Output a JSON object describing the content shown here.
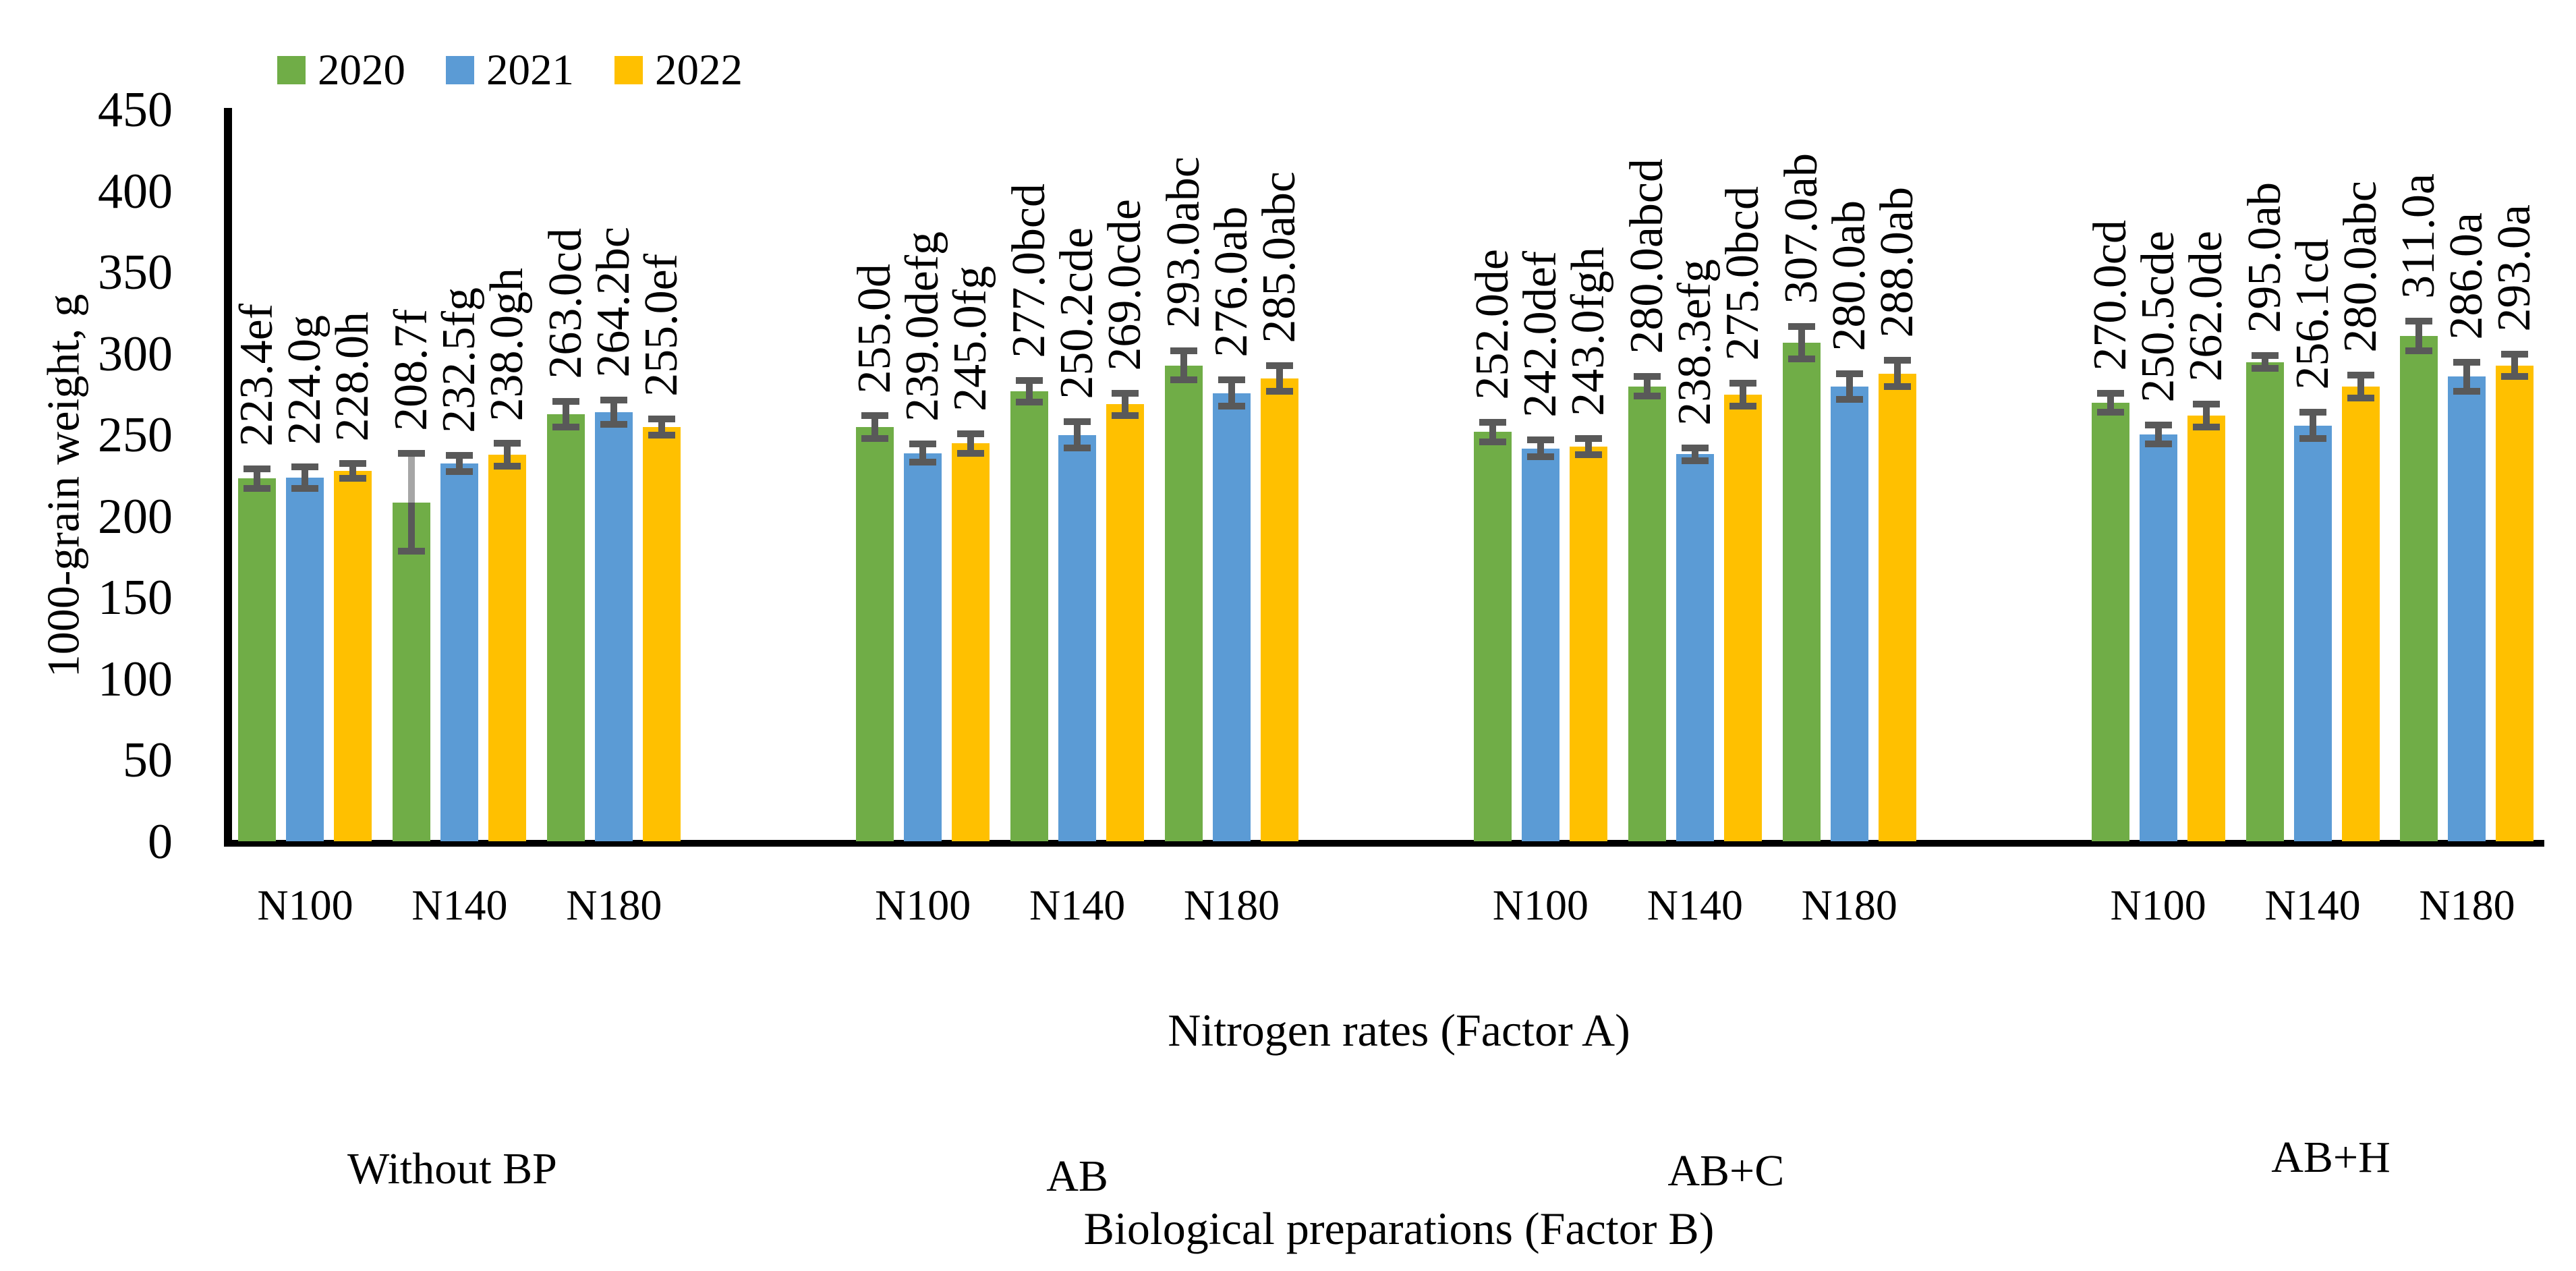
{
  "figure": {
    "background": "#FFFFFF",
    "axis_color": "#000000",
    "text_color": "#000000"
  },
  "chart_data": {
    "type": "bar",
    "title": "",
    "ylabel": "1000-grain weight, g",
    "xlabel": "Nitrogen rates (Factor A)",
    "xlabel2": "Biological preparations (Factor B)",
    "ylim": [
      0,
      450
    ],
    "ytick_interval": 50,
    "yticks": [
      450,
      400,
      350,
      300,
      250,
      200,
      150,
      100,
      50,
      0
    ],
    "grid": false,
    "legend": {
      "position": "top",
      "entries": [
        {
          "name": "2020",
          "color": "#70AD47"
        },
        {
          "name": "2021",
          "color": "#5B9BD5"
        },
        {
          "name": "2022",
          "color": "#FFC000"
        }
      ]
    },
    "error_bar_color": "#595959",
    "error_bar_light_color": "#A6A6A6",
    "categories_per_group": [
      "N100",
      "N140",
      "N180"
    ],
    "groups": [
      {
        "label": "Without BP",
        "categories": [
          {
            "label": "N100",
            "bars": [
              {
                "series": "2020",
                "value": 223.4,
                "data_label": "223.4ef",
                "error": 6
              },
              {
                "series": "2021",
                "value": 224.0,
                "data_label": "224.0g",
                "error": 6.5
              },
              {
                "series": "2022",
                "value": 228.0,
                "data_label": "228.0h",
                "error": 4.5
              }
            ]
          },
          {
            "label": "N140",
            "bars": [
              {
                "series": "2020",
                "value": 208.7,
                "data_label": "208.7f",
                "error": 30,
                "light_stem": true
              },
              {
                "series": "2021",
                "value": 232.5,
                "data_label": "232.5fg",
                "error": 5
              },
              {
                "series": "2022",
                "value": 238.0,
                "data_label": "238.0gh",
                "error": 7
              }
            ]
          },
          {
            "label": "N180",
            "bars": [
              {
                "series": "2020",
                "value": 263.0,
                "data_label": "263.0cd",
                "error": 8
              },
              {
                "series": "2021",
                "value": 264.2,
                "data_label": "264.2bc",
                "error": 7.5
              },
              {
                "series": "2022",
                "value": 255.0,
                "data_label": "255.0ef",
                "error": 5
              }
            ]
          }
        ]
      },
      {
        "label": "AB",
        "categories": [
          {
            "label": "N100",
            "bars": [
              {
                "series": "2020",
                "value": 255.0,
                "data_label": "255.0d",
                "error": 7
              },
              {
                "series": "2021",
                "value": 239.0,
                "data_label": "239.0defg",
                "error": 5.5
              },
              {
                "series": "2022",
                "value": 245.0,
                "data_label": "245.0fg",
                "error": 6
              }
            ]
          },
          {
            "label": "N140",
            "bars": [
              {
                "series": "2020",
                "value": 277.0,
                "data_label": "277.0bcd",
                "error": 6.5
              },
              {
                "series": "2021",
                "value": 250.2,
                "data_label": "250.2cde",
                "error": 8
              },
              {
                "series": "2022",
                "value": 269.0,
                "data_label": "269.0cde",
                "error": 7
              }
            ]
          },
          {
            "label": "N180",
            "bars": [
              {
                "series": "2020",
                "value": 293.0,
                "data_label": "293.0abc",
                "error": 9
              },
              {
                "series": "2021",
                "value": 276.0,
                "data_label": "276.0ab",
                "error": 8
              },
              {
                "series": "2022",
                "value": 285.0,
                "data_label": "285.0abc",
                "error": 8
              }
            ]
          }
        ]
      },
      {
        "label": "AB+C",
        "categories": [
          {
            "label": "N100",
            "bars": [
              {
                "series": "2020",
                "value": 252.0,
                "data_label": "252.0de",
                "error": 6
              },
              {
                "series": "2021",
                "value": 242.0,
                "data_label": "242.0def",
                "error": 5
              },
              {
                "series": "2022",
                "value": 243.0,
                "data_label": "243.0fgh",
                "error": 5
              }
            ]
          },
          {
            "label": "N140",
            "bars": [
              {
                "series": "2020",
                "value": 280.0,
                "data_label": "280.0abcd",
                "error": 6
              },
              {
                "series": "2021",
                "value": 238.3,
                "data_label": "238.3efg",
                "error": 4
              },
              {
                "series": "2022",
                "value": 275.0,
                "data_label": "275.0bcd",
                "error": 7
              }
            ]
          },
          {
            "label": "N180",
            "bars": [
              {
                "series": "2020",
                "value": 307.0,
                "data_label": "307.0ab",
                "error": 10
              },
              {
                "series": "2021",
                "value": 280.0,
                "data_label": "280.0ab",
                "error": 8
              },
              {
                "series": "2022",
                "value": 288.0,
                "data_label": "288.0ab",
                "error": 8
              }
            ]
          }
        ]
      },
      {
        "label": "AB+H",
        "categories": [
          {
            "label": "N100",
            "bars": [
              {
                "series": "2020",
                "value": 270.0,
                "data_label": "270.0cd",
                "error": 6
              },
              {
                "series": "2021",
                "value": 250.5,
                "data_label": "250.5cde",
                "error": 6
              },
              {
                "series": "2022",
                "value": 262.0,
                "data_label": "262.0de",
                "error": 7
              }
            ]
          },
          {
            "label": "N140",
            "bars": [
              {
                "series": "2020",
                "value": 295.0,
                "data_label": "295.0ab",
                "error": 4
              },
              {
                "series": "2021",
                "value": 256.1,
                "data_label": "256.1cd",
                "error": 8
              },
              {
                "series": "2022",
                "value": 280.0,
                "data_label": "280.0abc",
                "error": 7
              }
            ]
          },
          {
            "label": "N180",
            "bars": [
              {
                "series": "2020",
                "value": 311.0,
                "data_label": "311.0a",
                "error": 9
              },
              {
                "series": "2021",
                "value": 286.0,
                "data_label": "286.0a",
                "error": 9
              },
              {
                "series": "2022",
                "value": 293.0,
                "data_label": "293.0a",
                "error": 7
              }
            ]
          }
        ]
      }
    ]
  }
}
